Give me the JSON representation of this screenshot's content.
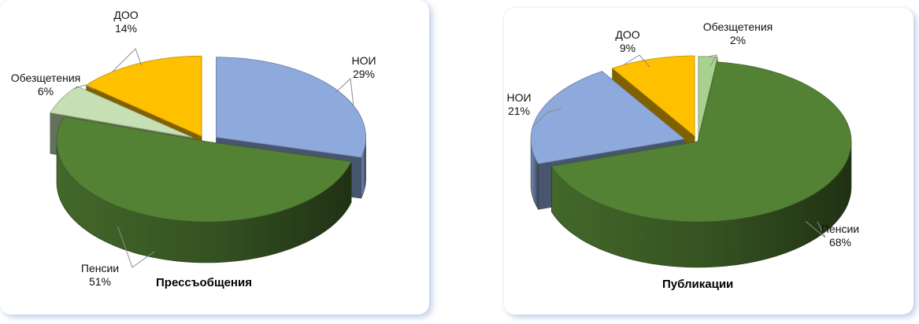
{
  "chart_data": [
    {
      "type": "pie",
      "title": "Прессъобщения",
      "categories": [
        "НОИ",
        "Пенсии",
        "Обезщетения",
        "ДОО"
      ],
      "values": [
        29,
        51,
        6,
        14
      ],
      "value_labels": [
        "29%",
        "51%",
        "6%",
        "14%"
      ],
      "colors": [
        "#8EA9DB",
        "#548235",
        "#C6E0B4",
        "#FFC000"
      ],
      "legend": "none",
      "style": "3d-exploded"
    },
    {
      "type": "pie",
      "title": "Публикации",
      "categories": [
        "Обезщетения",
        "Пенсии",
        "НОИ",
        "ДОО"
      ],
      "values": [
        2,
        68,
        21,
        9
      ],
      "value_labels": [
        "2%",
        "68%",
        "21%",
        "9%"
      ],
      "colors": [
        "#A9D18E",
        "#548235",
        "#8EA9DB",
        "#FFC000"
      ],
      "legend": "none",
      "style": "3d-exploded"
    }
  ]
}
